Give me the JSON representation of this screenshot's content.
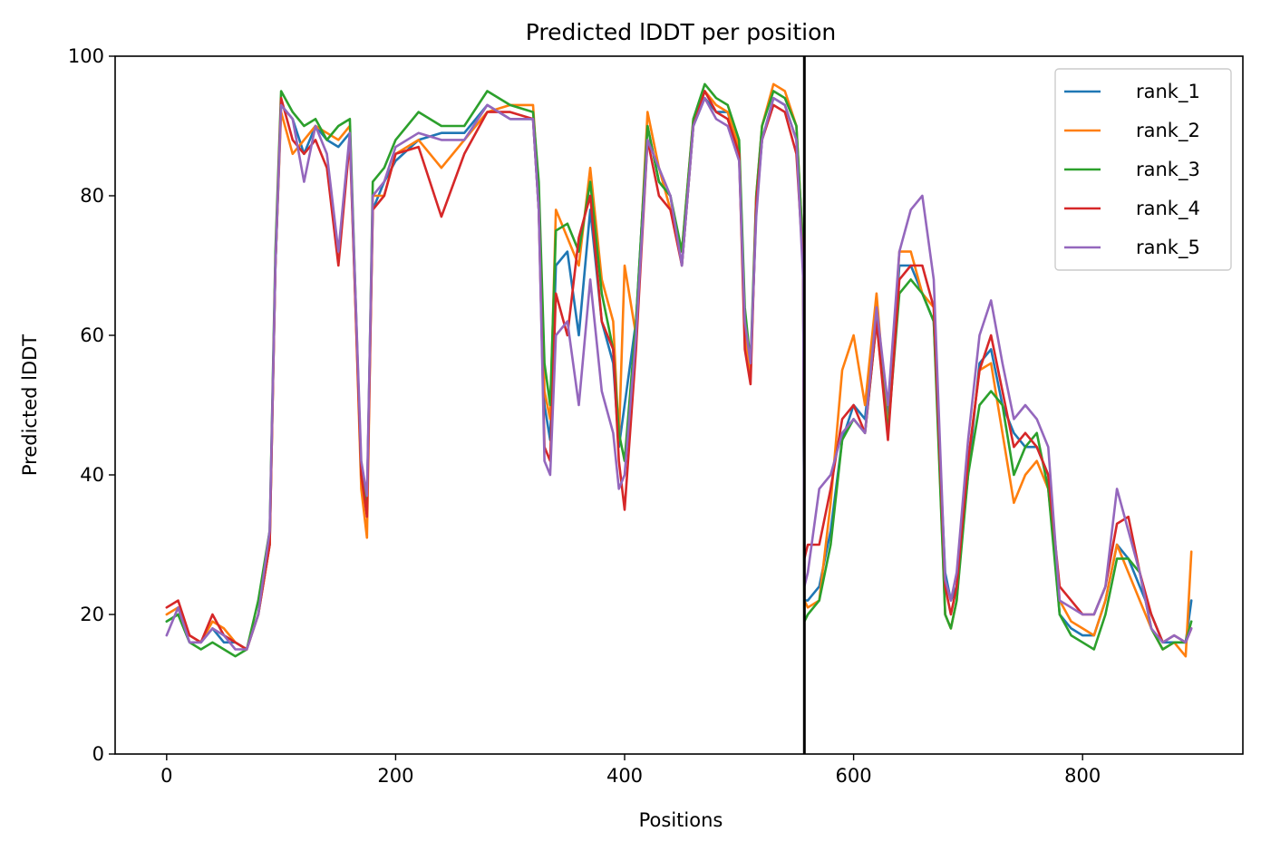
{
  "chart_data": {
    "type": "line",
    "title": "Predicted lDDT per position",
    "xlabel": "Positions",
    "ylabel": "Predicted lDDT",
    "xlim": [
      -45,
      940
    ],
    "ylim": [
      0,
      100
    ],
    "xticks": [
      0,
      200,
      400,
      600,
      800
    ],
    "yticks": [
      0,
      20,
      40,
      60,
      80,
      100
    ],
    "grid": false,
    "legend_position": "upper right",
    "vline": {
      "x": 557,
      "color": "#000000"
    },
    "series": [
      {
        "name": "rank_1",
        "color": "#1f77b4",
        "x": [
          0,
          10,
          20,
          30,
          40,
          50,
          60,
          70,
          80,
          90,
          95,
          100,
          110,
          120,
          130,
          140,
          150,
          160,
          170,
          175,
          180,
          190,
          200,
          220,
          240,
          260,
          280,
          300,
          320,
          325,
          330,
          335,
          340,
          350,
          360,
          370,
          380,
          390,
          395,
          400,
          410,
          420,
          430,
          440,
          450,
          460,
          470,
          480,
          490,
          500,
          505,
          510,
          515,
          520,
          530,
          540,
          550,
          556,
          557,
          560,
          570,
          580,
          590,
          600,
          610,
          620,
          630,
          640,
          650,
          660,
          670,
          680,
          685,
          690,
          700,
          710,
          720,
          730,
          740,
          750,
          760,
          770,
          780,
          790,
          800,
          810,
          820,
          830,
          840,
          850,
          860,
          870,
          880,
          890,
          895
        ],
        "y": [
          19,
          20,
          16,
          16,
          18,
          16,
          16,
          15,
          20,
          30,
          70,
          93,
          91,
          86,
          90,
          88,
          87,
          89,
          40,
          36,
          78,
          82,
          85,
          88,
          89,
          89,
          93,
          91,
          91,
          78,
          50,
          45,
          70,
          72,
          60,
          78,
          62,
          56,
          44,
          50,
          62,
          90,
          82,
          80,
          70,
          90,
          94,
          92,
          92,
          86,
          62,
          55,
          78,
          88,
          94,
          93,
          88,
          70,
          22,
          22,
          24,
          32,
          45,
          50,
          48,
          64,
          48,
          70,
          70,
          66,
          62,
          26,
          22,
          24,
          40,
          56,
          58,
          50,
          46,
          44,
          44,
          40,
          20,
          18,
          17,
          17,
          22,
          30,
          28,
          24,
          20,
          16,
          16,
          16,
          22
        ]
      },
      {
        "name": "rank_2",
        "color": "#ff7f0e",
        "x": [
          0,
          10,
          20,
          30,
          40,
          50,
          60,
          70,
          80,
          90,
          95,
          100,
          110,
          120,
          130,
          140,
          150,
          160,
          170,
          175,
          180,
          190,
          200,
          220,
          240,
          260,
          280,
          300,
          320,
          325,
          330,
          335,
          340,
          350,
          360,
          370,
          380,
          390,
          395,
          400,
          410,
          420,
          430,
          440,
          450,
          460,
          470,
          480,
          490,
          500,
          505,
          510,
          515,
          520,
          530,
          540,
          550,
          556,
          557,
          560,
          570,
          580,
          590,
          600,
          610,
          620,
          630,
          640,
          650,
          660,
          670,
          680,
          685,
          690,
          700,
          710,
          720,
          730,
          740,
          750,
          760,
          770,
          780,
          790,
          800,
          810,
          820,
          830,
          840,
          850,
          860,
          870,
          880,
          890,
          895
        ],
        "y": [
          20,
          21,
          17,
          16,
          19,
          18,
          16,
          15,
          20,
          30,
          70,
          92,
          86,
          88,
          90,
          89,
          88,
          90,
          38,
          31,
          80,
          80,
          86,
          88,
          84,
          88,
          92,
          93,
          93,
          80,
          52,
          48,
          78,
          74,
          70,
          84,
          68,
          62,
          45,
          70,
          60,
          92,
          84,
          78,
          72,
          91,
          95,
          93,
          92,
          87,
          60,
          54,
          80,
          90,
          96,
          95,
          90,
          72,
          22,
          21,
          22,
          36,
          55,
          60,
          50,
          66,
          46,
          72,
          72,
          66,
          64,
          20,
          18,
          22,
          42,
          55,
          56,
          46,
          36,
          40,
          42,
          38,
          22,
          19,
          18,
          17,
          22,
          30,
          26,
          22,
          18,
          15,
          16,
          14,
          29
        ]
      },
      {
        "name": "rank_3",
        "color": "#2ca02c",
        "x": [
          0,
          10,
          20,
          30,
          40,
          50,
          60,
          70,
          80,
          90,
          95,
          100,
          110,
          120,
          130,
          140,
          150,
          160,
          170,
          175,
          180,
          190,
          200,
          220,
          240,
          260,
          280,
          300,
          320,
          325,
          330,
          335,
          340,
          350,
          360,
          370,
          380,
          390,
          395,
          400,
          410,
          420,
          430,
          440,
          450,
          460,
          470,
          480,
          490,
          500,
          505,
          510,
          515,
          520,
          530,
          540,
          550,
          556,
          557,
          560,
          570,
          580,
          590,
          600,
          610,
          620,
          630,
          640,
          650,
          660,
          670,
          680,
          685,
          690,
          700,
          710,
          720,
          730,
          740,
          750,
          760,
          770,
          780,
          790,
          800,
          810,
          820,
          830,
          840,
          850,
          860,
          870,
          880,
          890,
          895
        ],
        "y": [
          19,
          20,
          16,
          15,
          16,
          15,
          14,
          15,
          22,
          32,
          72,
          95,
          92,
          90,
          91,
          88,
          90,
          91,
          40,
          35,
          82,
          84,
          88,
          92,
          90,
          90,
          95,
          93,
          92,
          82,
          56,
          50,
          75,
          76,
          72,
          82,
          66,
          58,
          46,
          42,
          62,
          90,
          82,
          80,
          72,
          91,
          96,
          94,
          93,
          88,
          64,
          56,
          80,
          90,
          95,
          94,
          90,
          72,
          19,
          20,
          22,
          30,
          45,
          48,
          46,
          62,
          46,
          66,
          68,
          66,
          62,
          20,
          18,
          22,
          40,
          50,
          52,
          50,
          40,
          44,
          46,
          38,
          20,
          17,
          16,
          15,
          20,
          28,
          28,
          26,
          18,
          15,
          16,
          16,
          19
        ]
      },
      {
        "name": "rank_4",
        "color": "#d62728",
        "x": [
          0,
          10,
          20,
          30,
          40,
          50,
          60,
          70,
          80,
          90,
          95,
          100,
          110,
          120,
          130,
          140,
          150,
          160,
          170,
          175,
          180,
          190,
          200,
          220,
          240,
          260,
          280,
          300,
          320,
          325,
          330,
          335,
          340,
          350,
          360,
          370,
          380,
          390,
          395,
          400,
          410,
          420,
          430,
          440,
          450,
          460,
          470,
          480,
          490,
          500,
          505,
          510,
          515,
          520,
          530,
          540,
          550,
          556,
          557,
          560,
          570,
          580,
          590,
          600,
          610,
          620,
          630,
          640,
          650,
          660,
          670,
          680,
          685,
          690,
          700,
          710,
          720,
          730,
          740,
          750,
          760,
          770,
          780,
          790,
          800,
          810,
          820,
          830,
          840,
          850,
          860,
          870,
          880,
          890,
          895
        ],
        "y": [
          21,
          22,
          17,
          16,
          20,
          17,
          16,
          15,
          20,
          30,
          70,
          94,
          88,
          86,
          88,
          84,
          70,
          88,
          40,
          34,
          78,
          80,
          86,
          87,
          77,
          86,
          92,
          92,
          91,
          78,
          44,
          42,
          66,
          60,
          74,
          80,
          62,
          58,
          42,
          35,
          58,
          88,
          80,
          78,
          70,
          90,
          95,
          92,
          91,
          86,
          58,
          53,
          79,
          88,
          93,
          92,
          86,
          70,
          28,
          30,
          30,
          38,
          48,
          50,
          46,
          62,
          45,
          68,
          70,
          70,
          64,
          24,
          20,
          24,
          42,
          55,
          60,
          52,
          44,
          46,
          44,
          40,
          24,
          22,
          20,
          20,
          24,
          33,
          34,
          26,
          20,
          16,
          17,
          16,
          18
        ]
      },
      {
        "name": "rank_5",
        "color": "#9467bd",
        "x": [
          0,
          10,
          20,
          30,
          40,
          50,
          60,
          70,
          80,
          90,
          95,
          100,
          110,
          120,
          130,
          140,
          150,
          160,
          170,
          175,
          180,
          190,
          200,
          220,
          240,
          260,
          280,
          300,
          320,
          325,
          330,
          335,
          340,
          350,
          360,
          370,
          380,
          390,
          395,
          400,
          410,
          420,
          430,
          440,
          450,
          460,
          470,
          480,
          490,
          500,
          505,
          510,
          515,
          520,
          530,
          540,
          550,
          556,
          557,
          560,
          570,
          580,
          590,
          600,
          610,
          620,
          630,
          640,
          650,
          660,
          670,
          680,
          685,
          690,
          700,
          710,
          720,
          730,
          740,
          750,
          760,
          770,
          780,
          790,
          800,
          810,
          820,
          830,
          840,
          850,
          860,
          870,
          880,
          890,
          895
        ],
        "y": [
          17,
          21,
          16,
          16,
          18,
          17,
          15,
          15,
          20,
          32,
          70,
          93,
          91,
          82,
          90,
          86,
          72,
          89,
          42,
          37,
          80,
          82,
          87,
          89,
          88,
          88,
          93,
          91,
          91,
          78,
          42,
          40,
          60,
          62,
          50,
          68,
          52,
          46,
          38,
          40,
          60,
          88,
          84,
          80,
          70,
          90,
          94,
          91,
          90,
          85,
          62,
          56,
          77,
          88,
          94,
          93,
          88,
          68,
          24,
          26,
          38,
          40,
          46,
          48,
          46,
          64,
          50,
          72,
          78,
          80,
          68,
          25,
          22,
          26,
          45,
          60,
          65,
          56,
          48,
          50,
          48,
          44,
          22,
          21,
          20,
          20,
          24,
          38,
          32,
          26,
          18,
          16,
          17,
          16,
          18
        ]
      }
    ]
  }
}
